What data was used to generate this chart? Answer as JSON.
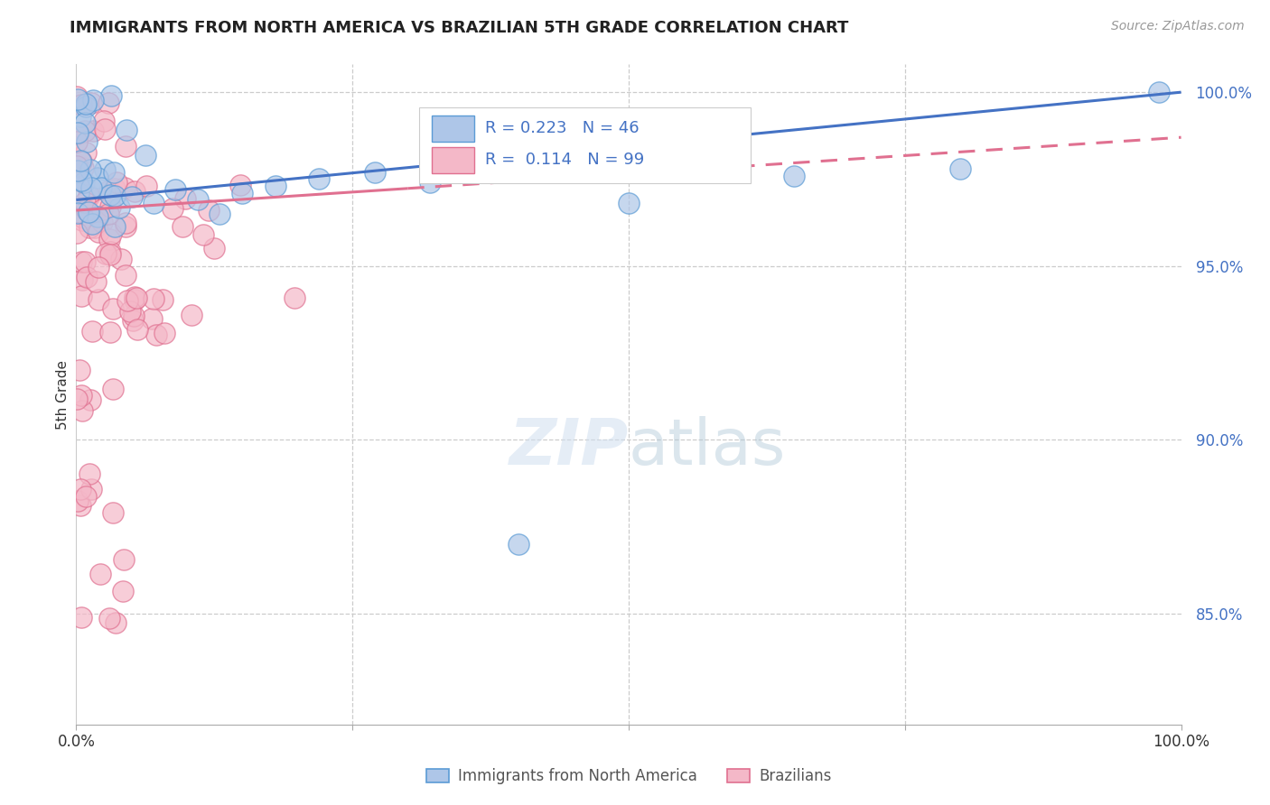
{
  "title": "IMMIGRANTS FROM NORTH AMERICA VS BRAZILIAN 5TH GRADE CORRELATION CHART",
  "source": "Source: ZipAtlas.com",
  "ylabel": "5th Grade",
  "x_min": 0.0,
  "x_max": 1.0,
  "y_min": 0.818,
  "y_max": 1.008,
  "y_ticks": [
    0.85,
    0.9,
    0.95,
    1.0
  ],
  "y_tick_labels": [
    "85.0%",
    "90.0%",
    "95.0%",
    "100.0%"
  ],
  "blue_R": 0.223,
  "blue_N": 46,
  "pink_R": 0.114,
  "pink_N": 99,
  "blue_color": "#aec6e8",
  "pink_color": "#f4b8c8",
  "blue_edge_color": "#5b9bd5",
  "pink_edge_color": "#e07090",
  "blue_line_color": "#4472c4",
  "pink_line_color": "#e07090",
  "legend_label_blue": "Immigrants from North America",
  "legend_label_pink": "Brazilians"
}
